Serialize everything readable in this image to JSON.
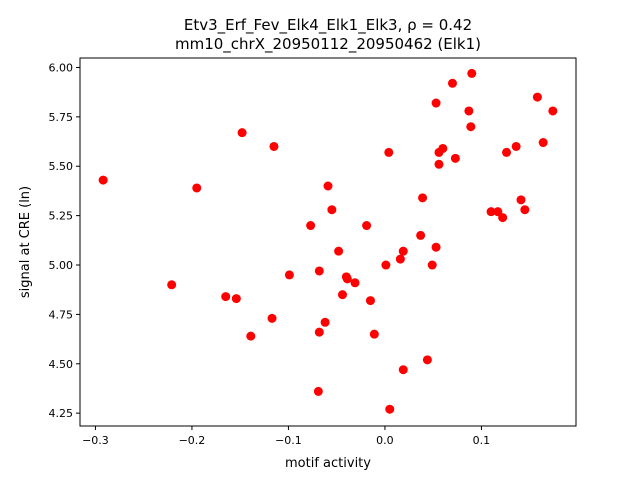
{
  "chart_data": {
    "type": "scatter",
    "title_line1": "Etv3_Erf_Fev_Elk4_Elk1_Elk3, ρ = 0.42",
    "title_line2": "mm10_chrX_20950112_20950462 (Elk1)",
    "xlabel": "motif activity",
    "ylabel": "signal at CRE (ln)",
    "xlim": [
      -0.316,
      0.198
    ],
    "ylim": [
      4.185,
      6.048
    ],
    "xticks": [
      -0.3,
      -0.2,
      -0.1,
      0.0,
      0.1
    ],
    "xtick_labels": [
      "−0.3",
      "−0.2",
      "−0.1",
      "0.0",
      "0.1"
    ],
    "yticks": [
      4.25,
      4.5,
      4.75,
      5.0,
      5.25,
      5.5,
      5.75,
      6.0
    ],
    "ytick_labels": [
      "4.25",
      "4.50",
      "4.75",
      "5.00",
      "5.25",
      "5.50",
      "5.75",
      "6.00"
    ],
    "grid": false,
    "marker_color": "#ff0000",
    "points": [
      [
        -0.292,
        5.43
      ],
      [
        -0.221,
        4.9
      ],
      [
        -0.195,
        5.39
      ],
      [
        -0.165,
        4.84
      ],
      [
        -0.154,
        4.83
      ],
      [
        -0.148,
        5.67
      ],
      [
        -0.139,
        4.64
      ],
      [
        -0.117,
        4.73
      ],
      [
        -0.115,
        5.6
      ],
      [
        -0.099,
        4.95
      ],
      [
        -0.077,
        5.2
      ],
      [
        -0.069,
        4.36
      ],
      [
        -0.068,
        4.97
      ],
      [
        -0.068,
        4.66
      ],
      [
        -0.062,
        4.71
      ],
      [
        -0.059,
        5.4
      ],
      [
        -0.055,
        5.28
      ],
      [
        -0.048,
        5.07
      ],
      [
        -0.044,
        4.85
      ],
      [
        -0.04,
        4.94
      ],
      [
        -0.039,
        4.93
      ],
      [
        -0.031,
        4.91
      ],
      [
        -0.019,
        5.2
      ],
      [
        -0.015,
        4.82
      ],
      [
        -0.011,
        4.65
      ],
      [
        0.001,
        5.0
      ],
      [
        0.004,
        5.57
      ],
      [
        0.005,
        4.27
      ],
      [
        0.016,
        5.03
      ],
      [
        0.019,
        5.07
      ],
      [
        0.019,
        4.47
      ],
      [
        0.037,
        5.15
      ],
      [
        0.039,
        5.34
      ],
      [
        0.044,
        4.52
      ],
      [
        0.049,
        5.0
      ],
      [
        0.053,
        5.09
      ],
      [
        0.053,
        5.82
      ],
      [
        0.056,
        5.57
      ],
      [
        0.056,
        5.51
      ],
      [
        0.06,
        5.59
      ],
      [
        0.07,
        5.92
      ],
      [
        0.073,
        5.54
      ],
      [
        0.087,
        5.78
      ],
      [
        0.09,
        5.97
      ],
      [
        0.089,
        5.7
      ],
      [
        0.11,
        5.27
      ],
      [
        0.117,
        5.27
      ],
      [
        0.122,
        5.24
      ],
      [
        0.126,
        5.57
      ],
      [
        0.136,
        5.6
      ],
      [
        0.141,
        5.33
      ],
      [
        0.145,
        5.28
      ],
      [
        0.158,
        5.85
      ],
      [
        0.164,
        5.62
      ],
      [
        0.174,
        5.78
      ]
    ]
  }
}
